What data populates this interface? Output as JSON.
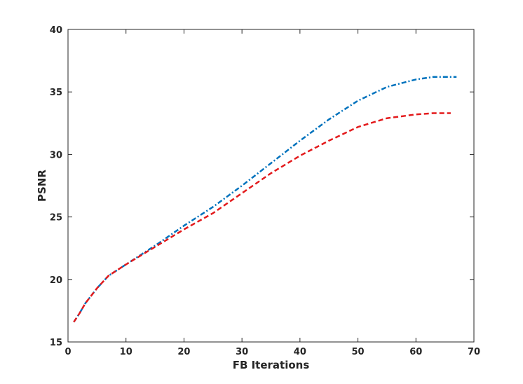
{
  "chart_data": {
    "type": "line",
    "title": "",
    "xlabel": "FB Iterations",
    "ylabel": "PSNR",
    "xlim": [
      0,
      70
    ],
    "ylim": [
      15,
      40
    ],
    "xticks": [
      0,
      10,
      20,
      30,
      40,
      50,
      60,
      70
    ],
    "yticks": [
      15,
      20,
      25,
      30,
      35,
      40
    ],
    "grid": false,
    "legend": "none",
    "series": [
      {
        "color": "#0072BD",
        "style": "dash-dot",
        "x": [
          1,
          2,
          3,
          5,
          7,
          10,
          15,
          20,
          25,
          30,
          35,
          40,
          45,
          50,
          55,
          60,
          63,
          65,
          67
        ],
        "y": [
          16.6,
          17.3,
          18.1,
          19.3,
          20.3,
          21.2,
          22.7,
          24.3,
          25.8,
          27.5,
          29.3,
          31.1,
          32.8,
          34.3,
          35.4,
          36.0,
          36.2,
          36.2,
          36.2
        ]
      },
      {
        "color": "#E31A1C",
        "style": "dashed",
        "x": [
          1,
          2,
          3,
          5,
          7,
          10,
          15,
          20,
          25,
          30,
          35,
          40,
          45,
          50,
          55,
          60,
          63,
          66
        ],
        "y": [
          16.6,
          17.3,
          18.1,
          19.3,
          20.3,
          21.2,
          22.6,
          24.0,
          25.3,
          26.9,
          28.5,
          29.9,
          31.1,
          32.2,
          32.9,
          33.2,
          33.3,
          33.3
        ]
      }
    ]
  }
}
